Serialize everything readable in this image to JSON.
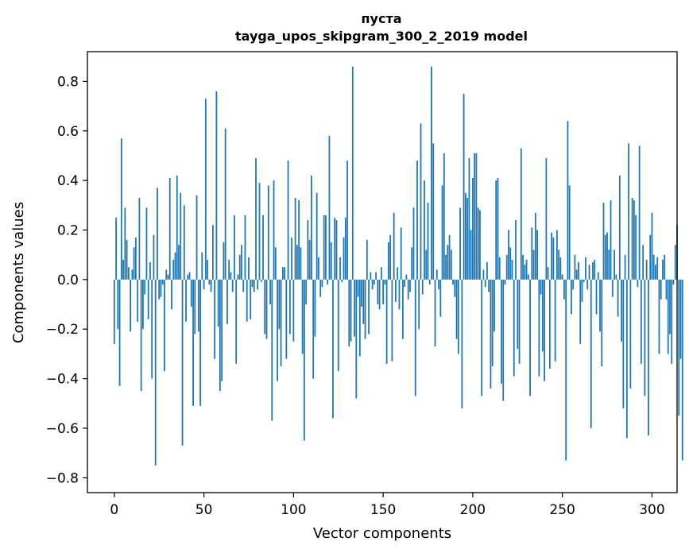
{
  "chart_data": {
    "type": "bar",
    "title": "пуста",
    "subtitle": "tayga_upos_skipgram_300_2_2019 model",
    "xlabel": "Vector components",
    "ylabel": "Components values",
    "xlim": [
      -15,
      314
    ],
    "ylim": [
      -0.86,
      0.92
    ],
    "xticks": [
      0,
      50,
      100,
      150,
      200,
      250,
      300
    ],
    "yticks": [
      -0.8,
      -0.6,
      -0.4,
      -0.2,
      0.0,
      0.2,
      0.4,
      0.6,
      0.8
    ],
    "ytick_labels": [
      "−0.8",
      "−0.6",
      "−0.4",
      "−0.2",
      "0.0",
      "0.2",
      "0.4",
      "0.6",
      "0.8"
    ],
    "xtick_labels": [
      "0",
      "50",
      "100",
      "150",
      "200",
      "250",
      "300"
    ],
    "bar_color": "#1f77b4",
    "values": [
      -0.26,
      0.25,
      -0.2,
      -0.43,
      0.57,
      0.08,
      0.29,
      0.16,
      0.05,
      -0.21,
      0.04,
      0.13,
      0.17,
      -0.17,
      0.33,
      -0.45,
      -0.2,
      -0.06,
      0.29,
      -0.16,
      0.07,
      -0.4,
      0.18,
      -0.75,
      0.37,
      -0.08,
      -0.07,
      -0.02,
      -0.37,
      0.04,
      0.02,
      0.41,
      -0.12,
      0.08,
      0.11,
      0.42,
      0.14,
      0.35,
      -0.67,
      0.3,
      -0.17,
      0.02,
      0.03,
      -0.11,
      -0.51,
      -0.22,
      0.34,
      -0.21,
      -0.51,
      0.11,
      -0.04,
      0.73,
      0.08,
      -0.02,
      -0.05,
      0.22,
      -0.32,
      0.76,
      -0.19,
      -0.45,
      -0.41,
      0.15,
      0.61,
      -0.18,
      0.08,
      0.03,
      -0.05,
      0.26,
      -0.34,
      0.02,
      0.1,
      0.14,
      -0.05,
      0.26,
      -0.17,
      0.09,
      -0.16,
      -0.03,
      -0.05,
      0.49,
      -0.04,
      0.39,
      -0.01,
      0.26,
      -0.22,
      -0.24,
      0.38,
      -0.1,
      -0.57,
      0.4,
      0.13,
      -0.41,
      -0.2,
      -0.35,
      0.05,
      0.05,
      -0.32,
      0.48,
      -0.22,
      0.17,
      -0.25,
      0.33,
      0.14,
      0.32,
      0.13,
      -0.3,
      -0.65,
      -0.1,
      0.24,
      0.16,
      0.42,
      -0.4,
      -0.23,
      0.35,
      0.09,
      -0.07,
      -0.03,
      0.26,
      0.26,
      -0.02,
      0.58,
      0.15,
      -0.56,
      0.25,
      0.24,
      -0.37,
      0.09,
      -0.01,
      0.17,
      0.25,
      0.48,
      -0.27,
      -0.25,
      0.86,
      -0.23,
      -0.48,
      -0.07,
      -0.31,
      -0.11,
      -0.18,
      -0.24,
      0.16,
      -0.22,
      0.03,
      -0.04,
      -0.02,
      0.03,
      -0.1,
      -0.12,
      0.05,
      -0.1,
      -0.02,
      -0.34,
      0.15,
      0.18,
      -0.33,
      0.27,
      -0.09,
      0.05,
      -0.12,
      0.21,
      -0.24,
      -0.03,
      0.02,
      -0.08,
      -0.05,
      0.13,
      0.29,
      -0.47,
      0.48,
      -0.2,
      0.63,
      -0.06,
      0.4,
      0.12,
      0.31,
      -0.02,
      0.86,
      0.55,
      -0.27,
      0.04,
      -0.04,
      -0.15,
      0.38,
      0.51,
      0.1,
      0.14,
      0.18,
      0.12,
      -0.02,
      -0.07,
      -0.24,
      -0.3,
      0.29,
      -0.52,
      0.75,
      0.35,
      0.33,
      0.49,
      0.2,
      0.41,
      0.51,
      0.51,
      0.29,
      0.28,
      -0.47,
      0.04,
      -0.03,
      0.07,
      -0.05,
      -0.44,
      -0.35,
      -0.21,
      0.4,
      0.41,
      0.09,
      -0.42,
      -0.49,
      -0.02,
      0.1,
      0.2,
      0.13,
      0.08,
      -0.39,
      0.24,
      -0.28,
      -0.34,
      0.53,
      0.1,
      0.06,
      0.08,
      0.02,
      -0.47,
      0.21,
      0.12,
      0.27,
      0.2,
      -0.39,
      -0.06,
      -0.29,
      -0.41,
      0.49,
      0.05,
      -0.36,
      0.19,
      0.17,
      -0.33,
      0.2,
      0.12,
      0.09,
      0.02,
      -0.08,
      -0.73,
      0.64,
      0.38,
      -0.14,
      -0.04,
      0.1,
      0.04,
      0.07,
      -0.26,
      -0.09,
      -0.01,
      0.09,
      -0.04,
      0.06,
      -0.6,
      0.07,
      0.08,
      -0.14,
      0.03,
      -0.21,
      -0.35,
      0.31,
      0.18,
      0.19,
      0.12,
      0.32,
      -0.07,
      0.12,
      0.02,
      -0.15,
      0.42,
      -0.25,
      -0.52,
      0.1,
      -0.64,
      0.55,
      -0.44,
      0.33,
      0.32,
      0.26,
      -0.03,
      0.54,
      -0.34,
      0.14,
      -0.47,
      0.08,
      -0.63,
      0.18,
      0.27,
      0.1,
      0.06,
      0.09,
      -0.3,
      -0.08,
      0.08,
      0.1,
      -0.08,
      -0.3,
      -0.22,
      -0.34,
      -0.02,
      0.14,
      0.22,
      -0.55,
      -0.32,
      -0.73
    ]
  }
}
